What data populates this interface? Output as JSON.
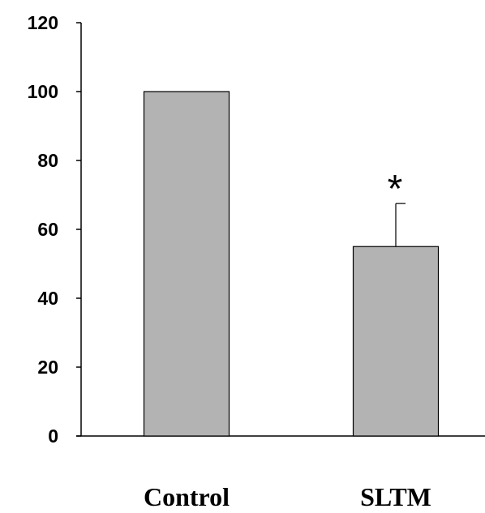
{
  "chart_data": {
    "type": "bar",
    "title": "",
    "xlabel": "",
    "ylabel": "",
    "categories": [
      "Control",
      "SLTM"
    ],
    "values": [
      100,
      55
    ],
    "error_plus": [
      0,
      12.5
    ],
    "ylim": [
      0,
      120
    ],
    "yticks": [
      "0",
      "20",
      "40",
      "60",
      "80",
      "100",
      "120"
    ],
    "annotations": [
      {
        "category": "SLTM",
        "text": "*"
      }
    ],
    "grid": false,
    "bar_color": "#b3b3b3"
  }
}
